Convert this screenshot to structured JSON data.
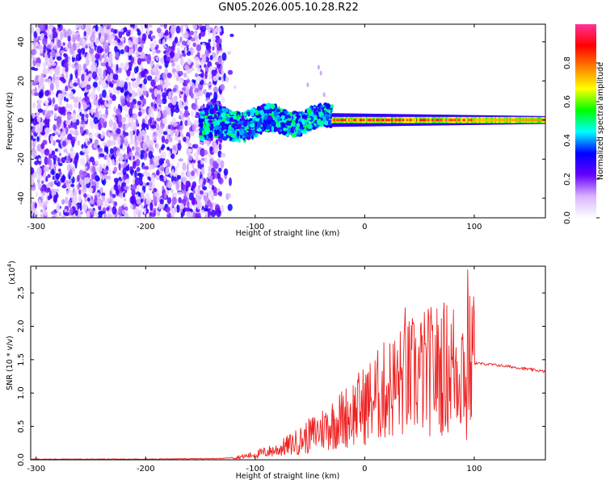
{
  "title": "GN05.2026.005.10.28.R22",
  "chart_data": [
    {
      "type": "heatmap",
      "xlabel": "Height of straight line (km)",
      "ylabel": "Frequency (Hz)",
      "xlim": [
        -305,
        165
      ],
      "ylim": [
        -50,
        49
      ],
      "xticks": [
        -300,
        -200,
        -100,
        0,
        100
      ],
      "yticks": [
        -40,
        -20,
        0,
        20,
        40
      ],
      "colorbar": {
        "label": "Normalized spectral amplitude",
        "range": [
          0,
          1
        ],
        "ticks": [
          "0.0",
          "0.2",
          "0.4",
          "0.6",
          "0.8"
        ],
        "colors": [
          "#ffffff",
          "#d9b3ff",
          "#6600ff",
          "#0000ff",
          "#00ffff",
          "#00ff00",
          "#ffff00",
          "#ff8000",
          "#ff0000",
          "#ff3399"
        ]
      },
      "regions": [
        {
          "x_range": [
            -305,
            -130
          ],
          "description_level": "scattered noise, amplitude 0.1-0.3 over full band"
        },
        {
          "x_range": [
            -150,
            -30
          ],
          "description_level": "broadband energy around 0 Hz, amplitude 0.3-0.5"
        },
        {
          "x_range": [
            -30,
            165
          ],
          "description_level": "narrow band at 0 Hz, amplitude 0.6-1.0"
        }
      ]
    },
    {
      "type": "line",
      "xlabel": "Height of straight line (km)",
      "ylabel": "SNR (10 * v/v)",
      "scale_label": "(x10",
      "scale_exp": "4",
      "xlim": [
        -305,
        165
      ],
      "ylim": [
        0,
        2.9
      ],
      "xticks": [
        -300,
        -200,
        -100,
        0,
        100
      ],
      "yticks": [
        "0.0",
        "0.5",
        "1.0",
        "1.5",
        "2.0",
        "2.5"
      ],
      "color": "#ee2222",
      "trend_points": [
        {
          "x": -305,
          "y": 0.01
        },
        {
          "x": -200,
          "y": 0.01
        },
        {
          "x": -130,
          "y": 0.02
        },
        {
          "x": -110,
          "y": 0.05
        },
        {
          "x": -100,
          "y": 0.08
        },
        {
          "x": -80,
          "y": 0.15
        },
        {
          "x": -60,
          "y": 0.28
        },
        {
          "x": -40,
          "y": 0.45
        },
        {
          "x": -20,
          "y": 0.62
        },
        {
          "x": 0,
          "y": 0.82
        },
        {
          "x": 20,
          "y": 1.05
        },
        {
          "x": 40,
          "y": 1.22
        },
        {
          "x": 60,
          "y": 1.33
        },
        {
          "x": 80,
          "y": 1.4
        },
        {
          "x": 100,
          "y": 1.45
        },
        {
          "x": 120,
          "y": 1.42
        },
        {
          "x": 140,
          "y": 1.38
        },
        {
          "x": 165,
          "y": 1.32
        }
      ],
      "peaks": [
        {
          "x": 94,
          "y": 2.85
        },
        {
          "x": 93,
          "y": 0.3
        },
        {
          "x": 37,
          "y": 2.28
        },
        {
          "x": 100,
          "y": 2.2
        }
      ]
    }
  ]
}
